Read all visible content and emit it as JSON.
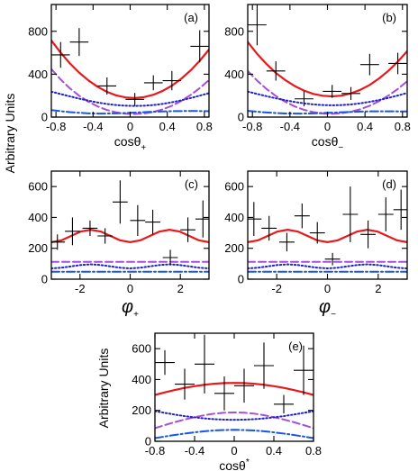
{
  "figure": {
    "ylabel_top": "Arbitrary Units",
    "ylabel_bottom": "Arbitrary Units"
  },
  "colors": {
    "total": "#e8191c",
    "dashed": "#a64fd8",
    "dotted": "#2222cc",
    "dashdot": "#1a55e6",
    "data": "#000000"
  },
  "chart_data": [
    {
      "type": "line",
      "panel_label": "(a)",
      "xlabel": "cosθ+",
      "xlabel_main": "cosθ",
      "xlabel_sub": "+",
      "xlim": [
        -0.85,
        0.85
      ],
      "ylim": [
        0,
        1050
      ],
      "xticks": [
        -0.8,
        -0.4,
        0,
        0.4,
        0.8
      ],
      "xtick_labels": [
        "-0.8",
        "-0.4",
        "0",
        "0.4",
        "0.8"
      ],
      "yticks": [
        0,
        400,
        800
      ],
      "ytick_labels": [
        "0",
        "400",
        "800"
      ],
      "x": [
        -0.85,
        -0.75,
        -0.65,
        -0.55,
        -0.45,
        -0.35,
        -0.25,
        -0.15,
        -0.05,
        0.05,
        0.15,
        0.25,
        0.35,
        0.45,
        0.55,
        0.65,
        0.75,
        0.85
      ],
      "series": [
        {
          "style": "solid",
          "values": [
            715,
            601,
            501,
            415,
            342,
            282,
            235,
            202,
            183,
            178,
            186,
            208,
            244,
            293,
            357,
            434,
            525,
            630
          ]
        },
        {
          "style": "dashed",
          "values": [
            448,
            351,
            268,
            199,
            143,
            99,
            66,
            44,
            31,
            28,
            34,
            48,
            72,
            105,
            150,
            205,
            270,
            346
          ]
        },
        {
          "style": "dotted",
          "values": [
            237,
            215,
            193,
            172,
            153,
            136,
            122,
            112,
            106,
            104,
            106,
            112,
            123,
            138,
            156,
            177,
            200,
            223
          ]
        },
        {
          "style": "dashdot",
          "values": [
            65,
            55,
            46,
            40,
            35,
            33,
            33,
            35,
            38,
            42,
            46,
            50,
            53,
            55,
            56,
            57,
            56,
            55
          ]
        }
      ],
      "points": [
        {
          "x": -0.75,
          "xerr": 0.1,
          "y": 580,
          "yerr": 120
        },
        {
          "x": -0.55,
          "xerr": 0.1,
          "y": 700,
          "yerr": 130
        },
        {
          "x": -0.25,
          "xerr": 0.1,
          "y": 290,
          "yerr": 80
        },
        {
          "x": 0.05,
          "xerr": 0.1,
          "y": 165,
          "yerr": 60
        },
        {
          "x": 0.25,
          "xerr": 0.1,
          "y": 320,
          "yerr": 70
        },
        {
          "x": 0.45,
          "xerr": 0.1,
          "y": 340,
          "yerr": 90
        },
        {
          "x": 0.75,
          "xerr": 0.1,
          "y": 660,
          "yerr": 150
        }
      ]
    },
    {
      "type": "line",
      "panel_label": "(b)",
      "xlabel": "cosθ−",
      "xlabel_main": "cosθ",
      "xlabel_sub": "−",
      "xlim": [
        -0.85,
        0.85
      ],
      "ylim": [
        0,
        1050
      ],
      "xticks": [
        -0.8,
        -0.4,
        0,
        0.4,
        0.8
      ],
      "xtick_labels": [
        "-0.8",
        "-0.4",
        "0",
        "0.4",
        "0.8"
      ],
      "yticks": [
        0,
        400,
        800
      ],
      "ytick_labels": [
        "0",
        "400",
        "800"
      ],
      "x": [
        -0.85,
        -0.75,
        -0.65,
        -0.55,
        -0.45,
        -0.35,
        -0.25,
        -0.15,
        -0.05,
        0.05,
        0.15,
        0.25,
        0.35,
        0.45,
        0.55,
        0.65,
        0.75,
        0.85
      ],
      "series": [
        {
          "style": "solid",
          "values": [
            700,
            590,
            495,
            412,
            345,
            290,
            247,
            216,
            199,
            193,
            200,
            221,
            254,
            300,
            360,
            432,
            517,
            615
          ]
        },
        {
          "style": "dashed",
          "values": [
            430,
            340,
            262,
            197,
            143,
            100,
            68,
            46,
            33,
            30,
            36,
            50,
            73,
            106,
            148,
            201,
            262,
            335
          ]
        },
        {
          "style": "dotted",
          "values": [
            238,
            216,
            195,
            175,
            157,
            141,
            128,
            118,
            112,
            110,
            112,
            118,
            128,
            142,
            159,
            179,
            201,
            225
          ]
        },
        {
          "style": "dashdot",
          "values": [
            58,
            50,
            43,
            38,
            34,
            33,
            33,
            35,
            38,
            41,
            45,
            48,
            51,
            53,
            54,
            54,
            53,
            52
          ]
        }
      ],
      "points": [
        {
          "x": -0.75,
          "xerr": 0.1,
          "y": 860,
          "yerr": 190
        },
        {
          "x": -0.55,
          "xerr": 0.1,
          "y": 430,
          "yerr": 90
        },
        {
          "x": -0.25,
          "xerr": 0.1,
          "y": 170,
          "yerr": 70
        },
        {
          "x": 0.05,
          "xerr": 0.1,
          "y": 240,
          "yerr": 60
        },
        {
          "x": 0.25,
          "xerr": 0.1,
          "y": 220,
          "yerr": 60
        },
        {
          "x": 0.45,
          "xerr": 0.1,
          "y": 490,
          "yerr": 100
        },
        {
          "x": 0.75,
          "xerr": 0.1,
          "y": 500,
          "yerr": 100
        }
      ]
    },
    {
      "type": "line",
      "panel_label": "(c)",
      "xlabel": "φ+",
      "xlabel_main": "φ",
      "xlabel_sub": "+",
      "xlim": [
        -3.1416,
        3.1416
      ],
      "ylim": [
        0,
        700
      ],
      "xticks": [
        -2,
        0,
        2
      ],
      "xtick_labels": [
        "-2",
        "0",
        "2"
      ],
      "yticks": [
        0,
        200,
        400,
        600
      ],
      "ytick_labels": [
        "0",
        "200",
        "400",
        "600"
      ],
      "x": [
        -3.1416,
        -2.7489,
        -2.3562,
        -1.9635,
        -1.5708,
        -1.1781,
        -0.7854,
        -0.3927,
        0,
        0.3927,
        0.7854,
        1.1781,
        1.5708,
        1.9635,
        2.3562,
        2.7489,
        3.1416
      ],
      "series": [
        {
          "style": "solid",
          "values": [
            240,
            251,
            280,
            309,
            320,
            309,
            280,
            251,
            240,
            251,
            280,
            309,
            320,
            309,
            280,
            251,
            240
          ]
        },
        {
          "style": "dashed",
          "values": [
            112,
            112,
            112,
            112,
            112,
            112,
            112,
            112,
            112,
            112,
            112,
            112,
            112,
            112,
            112,
            112,
            112
          ]
        },
        {
          "style": "dotted",
          "values": [
            70,
            74,
            83,
            92,
            96,
            92,
            83,
            74,
            70,
            74,
            83,
            92,
            96,
            92,
            83,
            74,
            70
          ]
        },
        {
          "style": "dashdot",
          "values": [
            48,
            48,
            48,
            48,
            48,
            48,
            48,
            48,
            48,
            48,
            48,
            48,
            48,
            48,
            48,
            48,
            48
          ]
        }
      ],
      "points": [
        {
          "x": -2.9,
          "xerr": 0.3,
          "y": 240,
          "yerr": 50
        },
        {
          "x": -2.3,
          "xerr": 0.3,
          "y": 310,
          "yerr": 90
        },
        {
          "x": -1.6,
          "xerr": 0.3,
          "y": 330,
          "yerr": 50
        },
        {
          "x": -1.0,
          "xerr": 0.3,
          "y": 280,
          "yerr": 50
        },
        {
          "x": -0.4,
          "xerr": 0.3,
          "y": 500,
          "yerr": 140
        },
        {
          "x": 0.3,
          "xerr": 0.3,
          "y": 380,
          "yerr": 100
        },
        {
          "x": 0.9,
          "xerr": 0.3,
          "y": 370,
          "yerr": 80
        },
        {
          "x": 1.6,
          "xerr": 0.3,
          "y": 140,
          "yerr": 50
        },
        {
          "x": 2.3,
          "xerr": 0.3,
          "y": 320,
          "yerr": 80
        },
        {
          "x": 2.9,
          "xerr": 0.3,
          "y": 390,
          "yerr": 120
        }
      ]
    },
    {
      "type": "line",
      "panel_label": "(d)",
      "xlabel": "φ−",
      "xlabel_main": "φ",
      "xlabel_sub": "−",
      "xlim": [
        -3.1416,
        3.1416
      ],
      "ylim": [
        0,
        700
      ],
      "xticks": [
        -2,
        0,
        2
      ],
      "xtick_labels": [
        "-2",
        "0",
        "2"
      ],
      "yticks": [
        0,
        200,
        400,
        600
      ],
      "ytick_labels": [
        "0",
        "200",
        "400",
        "600"
      ],
      "x": [
        -3.1416,
        -2.7489,
        -2.3562,
        -1.9635,
        -1.5708,
        -1.1781,
        -0.7854,
        -0.3927,
        0,
        0.3927,
        0.7854,
        1.1781,
        1.5708,
        1.9635,
        2.3562,
        2.7489,
        3.1416
      ],
      "series": [
        {
          "style": "solid",
          "values": [
            240,
            251,
            280,
            309,
            320,
            309,
            280,
            251,
            240,
            251,
            280,
            309,
            320,
            309,
            280,
            251,
            240
          ]
        },
        {
          "style": "dashed",
          "values": [
            112,
            112,
            112,
            112,
            112,
            112,
            112,
            112,
            112,
            112,
            112,
            112,
            112,
            112,
            112,
            112,
            112
          ]
        },
        {
          "style": "dotted",
          "values": [
            70,
            74,
            83,
            92,
            96,
            92,
            83,
            74,
            70,
            74,
            83,
            92,
            96,
            92,
            83,
            74,
            70
          ]
        },
        {
          "style": "dashdot",
          "values": [
            48,
            48,
            48,
            48,
            48,
            48,
            48,
            48,
            48,
            48,
            48,
            48,
            48,
            48,
            48,
            48,
            48
          ]
        }
      ],
      "points": [
        {
          "x": -2.9,
          "xerr": 0.3,
          "y": 390,
          "yerr": 110
        },
        {
          "x": -2.3,
          "xerr": 0.3,
          "y": 330,
          "yerr": 80
        },
        {
          "x": -1.6,
          "xerr": 0.3,
          "y": 240,
          "yerr": 60
        },
        {
          "x": -1.0,
          "xerr": 0.3,
          "y": 410,
          "yerr": 80
        },
        {
          "x": -0.4,
          "xerr": 0.3,
          "y": 300,
          "yerr": 70
        },
        {
          "x": 0.2,
          "xerr": 0.3,
          "y": 130,
          "yerr": 40
        },
        {
          "x": 0.9,
          "xerr": 0.3,
          "y": 420,
          "yerr": 180
        },
        {
          "x": 1.6,
          "xerr": 0.3,
          "y": 290,
          "yerr": 90
        },
        {
          "x": 2.3,
          "xerr": 0.3,
          "y": 420,
          "yerr": 110
        },
        {
          "x": 2.9,
          "xerr": 0.3,
          "y": 450,
          "yerr": 130
        }
      ]
    },
    {
      "type": "line",
      "panel_label": "(e)",
      "xlabel": "cosθ*",
      "xlabel_main": "cosθ",
      "xlabel_sub": "*",
      "xlim": [
        -0.8,
        0.8
      ],
      "ylim": [
        0,
        700
      ],
      "xticks": [
        -0.8,
        -0.4,
        0,
        0.4,
        0.8
      ],
      "xtick_labels": [
        "-0.8",
        "-0.4",
        "0",
        "0.4",
        "0.8"
      ],
      "yticks": [
        0,
        200,
        400,
        600
      ],
      "ytick_labels": [
        "0",
        "200",
        "400",
        "600"
      ],
      "x": [
        -0.8,
        -0.7,
        -0.6,
        -0.5,
        -0.4,
        -0.3,
        -0.2,
        -0.1,
        0,
        0.1,
        0.2,
        0.3,
        0.4,
        0.5,
        0.6,
        0.7,
        0.8
      ],
      "series": [
        {
          "style": "solid",
          "values": [
            300,
            317,
            332,
            346,
            357,
            366,
            373,
            377,
            378,
            377,
            373,
            366,
            357,
            346,
            332,
            317,
            300
          ]
        },
        {
          "style": "dashed",
          "values": [
            85,
            105,
            124,
            141,
            156,
            169,
            179,
            185,
            187,
            185,
            179,
            169,
            156,
            141,
            124,
            105,
            85
          ]
        },
        {
          "style": "dotted",
          "values": [
            195,
            184,
            173,
            163,
            155,
            148,
            143,
            140,
            139,
            140,
            143,
            148,
            155,
            163,
            173,
            184,
            195
          ]
        },
        {
          "style": "dashdot",
          "values": [
            20,
            31,
            41,
            50,
            58,
            65,
            70,
            73,
            74,
            73,
            70,
            65,
            58,
            50,
            41,
            31,
            20
          ]
        }
      ],
      "points": [
        {
          "x": -0.7,
          "xerr": 0.1,
          "y": 510,
          "yerr": 80
        },
        {
          "x": -0.5,
          "xerr": 0.1,
          "y": 370,
          "yerr": 100
        },
        {
          "x": -0.3,
          "xerr": 0.1,
          "y": 500,
          "yerr": 190
        },
        {
          "x": -0.1,
          "xerr": 0.1,
          "y": 310,
          "yerr": 110
        },
        {
          "x": 0.1,
          "xerr": 0.1,
          "y": 360,
          "yerr": 110
        },
        {
          "x": 0.3,
          "xerr": 0.1,
          "y": 490,
          "yerr": 150
        },
        {
          "x": 0.5,
          "xerr": 0.1,
          "y": 240,
          "yerr": 60
        },
        {
          "x": 0.7,
          "xerr": 0.1,
          "y": 460,
          "yerr": 160
        }
      ]
    }
  ]
}
